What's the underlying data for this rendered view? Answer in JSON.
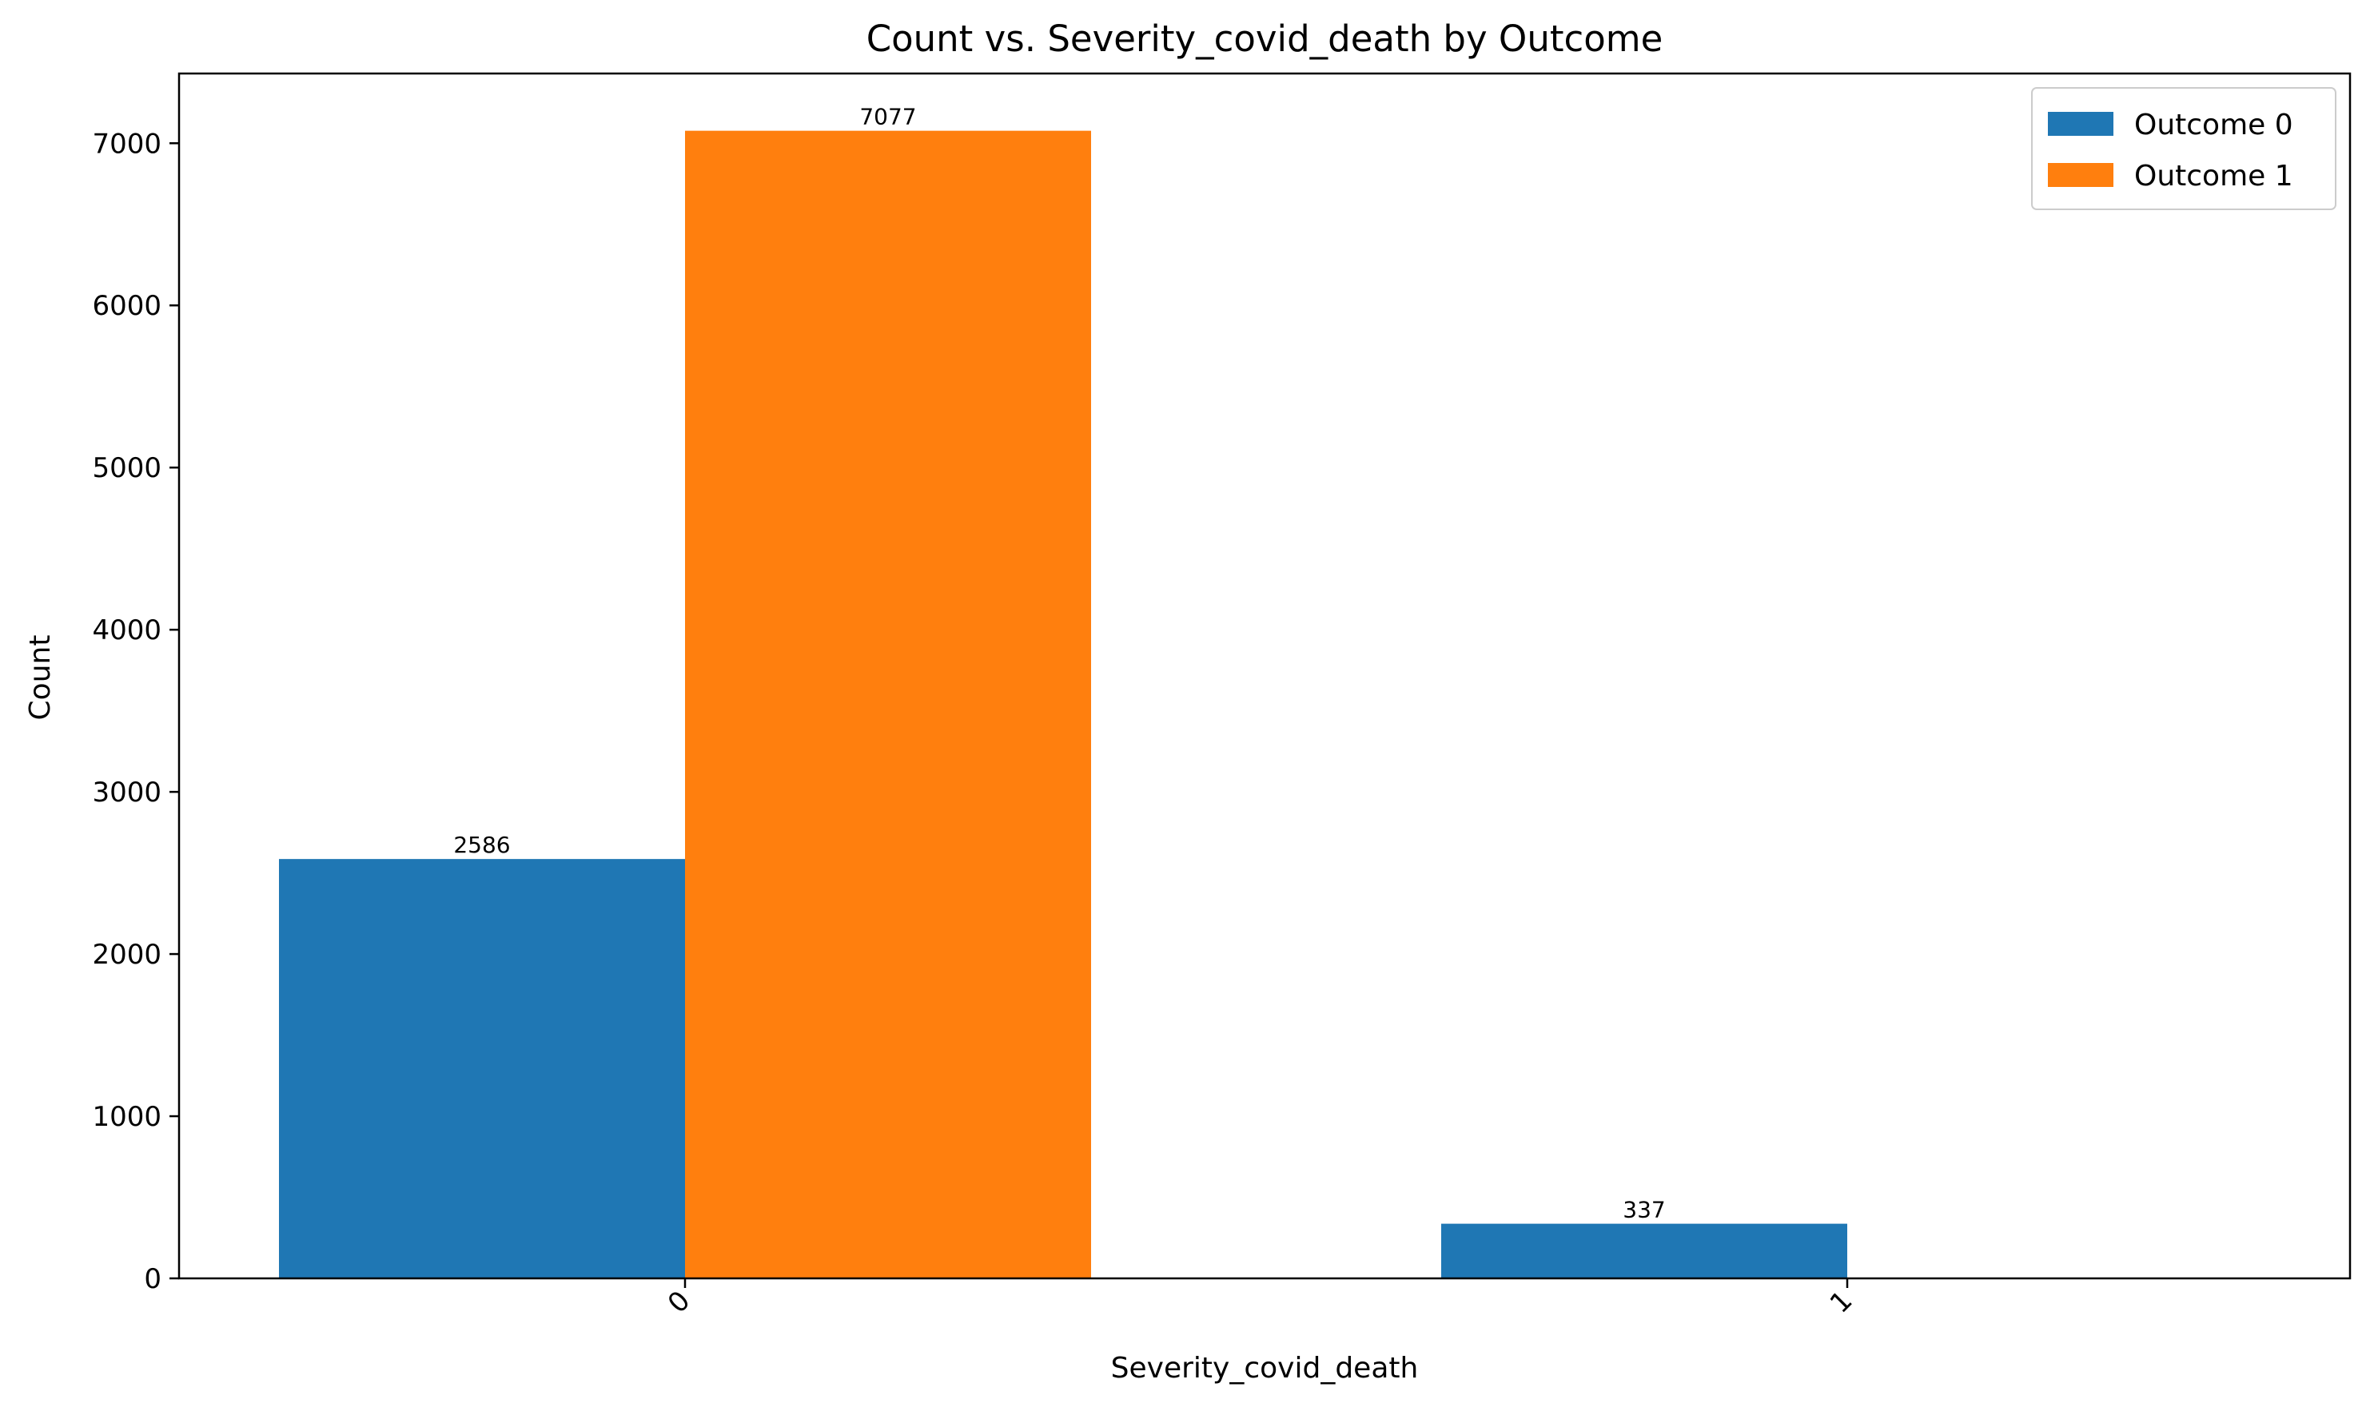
{
  "chart_data": {
    "type": "bar",
    "title": "Count vs. Severity_covid_death by Outcome",
    "xlabel": "Severity_covid_death",
    "ylabel": "Count",
    "categories": [
      "0",
      "1"
    ],
    "series": [
      {
        "name": "Outcome 0",
        "values": [
          2586,
          337
        ],
        "color": "#1f77b4"
      },
      {
        "name": "Outcome 1",
        "values": [
          7077,
          null
        ],
        "color": "#ff7f0e"
      }
    ],
    "data_labels": [
      {
        "series": 0,
        "category": 0,
        "text": "2586"
      },
      {
        "series": 0,
        "category": 1,
        "text": "337"
      },
      {
        "series": 1,
        "category": 0,
        "text": "7077"
      }
    ],
    "yticks": [
      0,
      1000,
      2000,
      3000,
      4000,
      5000,
      6000,
      7000
    ],
    "ylim": [
      0,
      7430
    ],
    "legend_position": "top-right",
    "grid": false
  }
}
